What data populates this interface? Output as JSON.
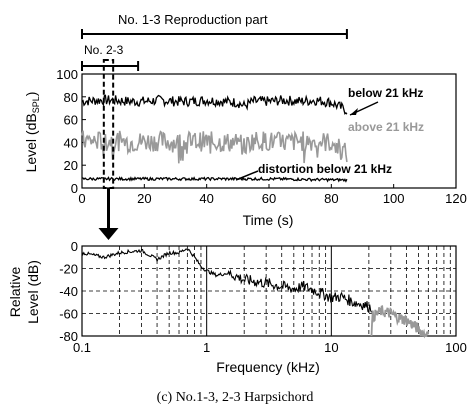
{
  "caption": "(c) No.1-3, 2-3 Harpsichord",
  "chart_data": [
    {
      "type": "line",
      "id": "top",
      "xlabel": "Time (s)",
      "ylabel_main": "Level (dB",
      "ylabel_sub": "SPL",
      "ylabel_close": ")",
      "xlim": [
        0,
        120
      ],
      "ylim": [
        0,
        100
      ],
      "xticks": [
        "0",
        "20",
        "40",
        "60",
        "80",
        "100",
        "120"
      ],
      "yticks": [
        "0",
        "20",
        "40",
        "60",
        "80",
        "100"
      ],
      "range_markers": [
        {
          "label": "No. 1-3    Reproduction part",
          "x_start": 0,
          "x_end": 85
        },
        {
          "label": "No. 2-3",
          "x_start": 0,
          "x_end": 18
        }
      ],
      "zoom_window": {
        "x_start": 7,
        "x_end": 10
      },
      "series": [
        {
          "name": "below 21 kHz",
          "color": "#000000",
          "t_end": 85,
          "t": [
            0,
            5,
            10,
            15,
            20,
            25,
            30,
            35,
            40,
            45,
            50,
            52,
            55,
            60,
            65,
            70,
            75,
            80,
            85
          ],
          "level": [
            76,
            77,
            77,
            76,
            76,
            77,
            76,
            76,
            77,
            76,
            75,
            72,
            76,
            76,
            77,
            76,
            77,
            75,
            68
          ]
        },
        {
          "name": "above 21 kHz",
          "color": "#999999",
          "t_end": 85,
          "t": [
            0,
            5,
            10,
            15,
            20,
            25,
            30,
            35,
            40,
            45,
            50,
            52,
            55,
            60,
            65,
            70,
            75,
            80,
            85
          ],
          "level": [
            42,
            41,
            42,
            40,
            41,
            41,
            40,
            41,
            41,
            40,
            40,
            36,
            42,
            41,
            40,
            41,
            41,
            40,
            30
          ]
        },
        {
          "name": "distortion below 21 kHz",
          "color": "#000000",
          "t_end": 85,
          "t": [
            0,
            20,
            40,
            60,
            85
          ],
          "level": [
            8,
            8,
            8,
            8,
            7
          ]
        }
      ]
    },
    {
      "type": "line",
      "id": "bottom",
      "xlabel": "Frequency (kHz)",
      "ylabel_line1": "Relative",
      "ylabel_line2": "Level  (dB)",
      "xscale": "log",
      "grid": true,
      "xlim": [
        0.1,
        100
      ],
      "ylim": [
        -80,
        0
      ],
      "xticks": [
        "0.1",
        "1",
        "10",
        "100"
      ],
      "yticks": [
        "0",
        "-20",
        "-40",
        "-60",
        "-80"
      ],
      "series": [
        {
          "name": "below 21 kHz",
          "color": "#000000",
          "f": [
            0.1,
            0.15,
            0.2,
            0.3,
            0.4,
            0.5,
            0.6,
            0.7,
            0.8,
            0.9,
            1.0,
            1.2,
            1.5,
            2,
            3,
            4,
            5,
            6,
            8,
            10,
            12,
            15,
            18,
            21
          ],
          "level": [
            -6,
            -10,
            -6,
            -4,
            -12,
            -6,
            -6,
            -2,
            -10,
            -18,
            -22,
            -26,
            -24,
            -30,
            -33,
            -36,
            -38,
            -36,
            -41,
            -46,
            -45,
            -50,
            -52,
            -55
          ]
        },
        {
          "name": "above 21 kHz",
          "color": "#999999",
          "f": [
            21,
            21.5,
            22,
            25,
            30,
            35,
            40,
            45,
            50,
            55,
            60
          ],
          "level": [
            -78,
            -62,
            -62,
            -58,
            -60,
            -64,
            -66,
            -70,
            -74,
            -78,
            -80
          ]
        }
      ]
    }
  ]
}
